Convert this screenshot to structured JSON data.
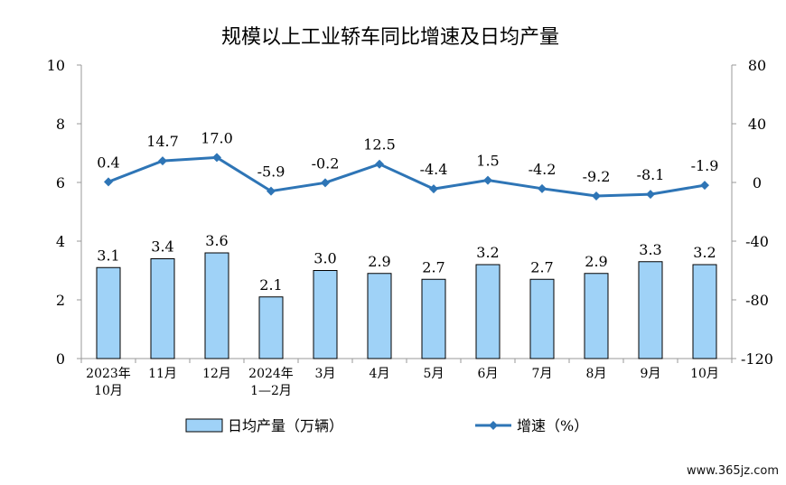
{
  "chart_data": {
    "type": "bar",
    "title": "规模以上工业轿车同比增速及日均产量",
    "categories": [
      [
        "2023年",
        "10月"
      ],
      [
        "11月"
      ],
      [
        "12月"
      ],
      [
        "2024年",
        "1—2月"
      ],
      [
        "3月"
      ],
      [
        "4月"
      ],
      [
        "5月"
      ],
      [
        "6月"
      ],
      [
        "7月"
      ],
      [
        "8月"
      ],
      [
        "9月"
      ],
      [
        "10月"
      ]
    ],
    "series": [
      {
        "name": "日均产量（万辆）",
        "type": "bar",
        "axis": "left",
        "color": "#9fd2f7",
        "values": [
          3.1,
          3.4,
          3.6,
          2.1,
          3.0,
          2.9,
          2.7,
          3.2,
          2.7,
          2.9,
          3.3,
          3.2
        ],
        "labels": [
          "3.1",
          "3.4",
          "3.6",
          "2.1",
          "3.0",
          "2.9",
          "2.7",
          "3.2",
          "2.7",
          "2.9",
          "3.3",
          "3.2"
        ]
      },
      {
        "name": "增速（%）",
        "type": "line",
        "axis": "right",
        "color": "#2e75b6",
        "values": [
          0.4,
          14.7,
          17.0,
          -5.9,
          -0.2,
          12.5,
          -4.4,
          1.5,
          -4.2,
          -9.2,
          -8.1,
          -1.9
        ],
        "labels": [
          "0.4",
          "14.7",
          "17.0",
          "-5.9",
          "-0.2",
          "12.5",
          "-4.4",
          "1.5",
          "-4.2",
          "-9.2",
          "-8.1",
          "-1.9"
        ]
      }
    ],
    "y_left": {
      "min": 0,
      "max": 10,
      "ticks": [
        0,
        2,
        4,
        6,
        8,
        10
      ]
    },
    "y_right": {
      "min": -120,
      "max": 80,
      "ticks": [
        -120,
        -80,
        -40,
        0,
        40,
        80
      ]
    },
    "legend_position": "bottom",
    "grid": false
  },
  "watermark": "www.365jz.com"
}
